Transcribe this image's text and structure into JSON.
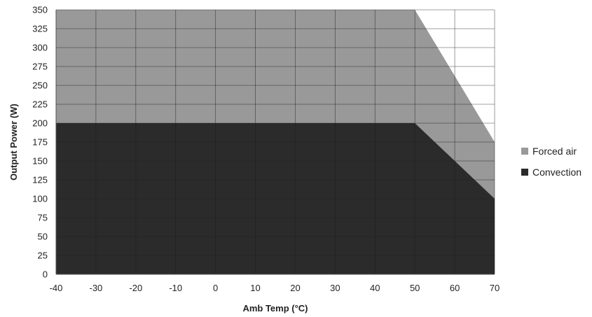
{
  "chart_data": {
    "type": "area",
    "title": "",
    "xlabel": "Amb Temp (°C)",
    "ylabel": "Output Power (W)",
    "xlim": [
      -40,
      70
    ],
    "ylim": [
      0,
      350
    ],
    "x_ticks": [
      -40,
      -30,
      -20,
      -10,
      0,
      10,
      20,
      30,
      40,
      50,
      60,
      70
    ],
    "y_ticks": [
      0,
      25,
      50,
      75,
      100,
      125,
      150,
      175,
      200,
      225,
      250,
      275,
      300,
      325,
      350
    ],
    "grid": true,
    "legend_position": "right",
    "series": [
      {
        "name": "Forced air",
        "color": "#999999",
        "points": [
          [
            -40,
            350
          ],
          [
            50,
            350
          ],
          [
            70,
            175
          ]
        ]
      },
      {
        "name": "Convection",
        "color": "#2b2b2b",
        "points": [
          [
            -40,
            200
          ],
          [
            50,
            200
          ],
          [
            70,
            100
          ]
        ]
      }
    ]
  }
}
